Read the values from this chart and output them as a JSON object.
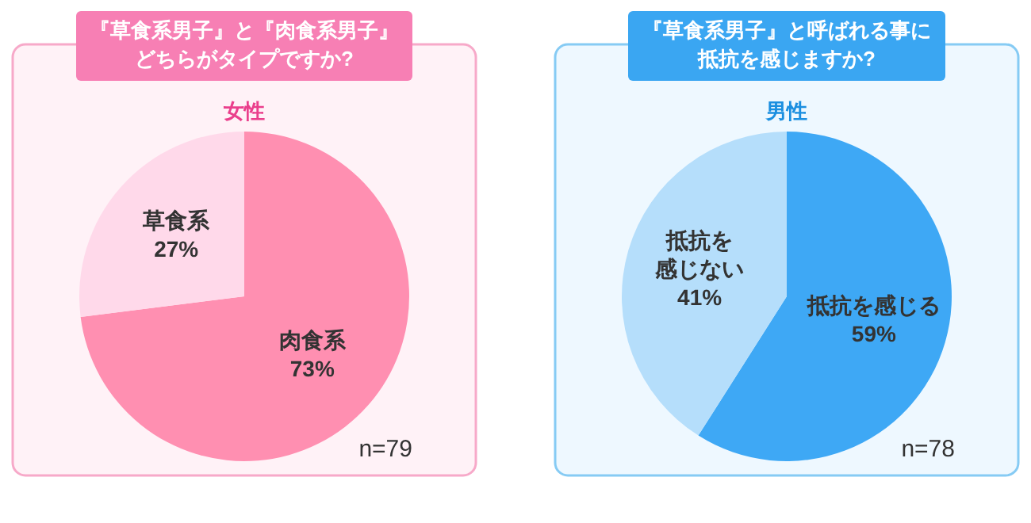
{
  "chart_data": [
    {
      "type": "pie",
      "title": "『草食系男子』と『肉食系男子』どちらがタイプですか?",
      "subtitle": "女性",
      "categories": [
        "肉食系",
        "草食系"
      ],
      "values": [
        73,
        27
      ],
      "value_labels": [
        "73%",
        "27%"
      ],
      "colors": [
        "#ff8fb1",
        "#ffd9ea"
      ],
      "annotations": [
        "n=79"
      ]
    },
    {
      "type": "pie",
      "title": "『草食系男子』と呼ばれる事に抵抗を感じますか?",
      "subtitle": "男性",
      "categories": [
        "抵抗を感じる",
        "抵抗を感じない"
      ],
      "values": [
        59,
        41
      ],
      "value_labels": [
        "59%",
        "41%"
      ],
      "colors": [
        "#3ea8f5",
        "#b5defb"
      ],
      "annotations": [
        "n=78"
      ]
    }
  ]
}
